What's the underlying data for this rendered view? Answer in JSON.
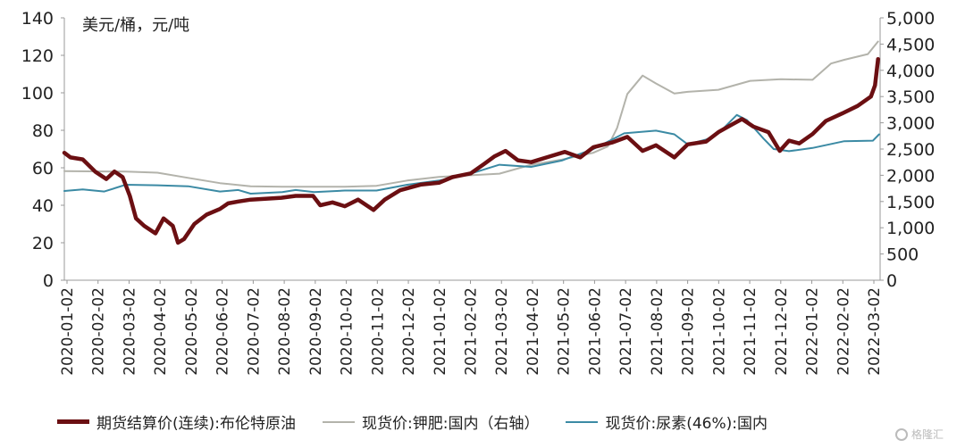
{
  "chart_data": {
    "type": "line",
    "title": "",
    "left_axis_label": "美元/桶，元/吨",
    "left_axis": {
      "ylim": [
        0,
        140
      ],
      "ticks": [
        0,
        20,
        40,
        60,
        80,
        100,
        120,
        140
      ]
    },
    "right_axis": {
      "ylim": [
        0,
        5000
      ],
      "ticks": [
        0,
        500,
        1000,
        1500,
        2000,
        2500,
        3000,
        3500,
        4000,
        4500,
        5000
      ],
      "tick_labels": [
        "0",
        "500",
        "1,000",
        "1,500",
        "2,000",
        "2,500",
        "3,000",
        "3,500",
        "4,000",
        "4,500",
        "5,000"
      ]
    },
    "x_range": [
      "2020-01-02",
      "2022-03-09"
    ],
    "x_tick_labels": [
      "2020-01-02",
      "2020-02-02",
      "2020-03-02",
      "2020-04-02",
      "2020-05-02",
      "2020-06-02",
      "2020-07-02",
      "2020-08-02",
      "2020-09-02",
      "2020-10-02",
      "2020-11-02",
      "2020-12-02",
      "2021-01-02",
      "2021-02-02",
      "2021-03-02",
      "2021-04-02",
      "2021-05-02",
      "2021-06-02",
      "2021-07-02",
      "2021-08-02",
      "2021-09-02",
      "2021-10-02",
      "2021-11-02",
      "2021-12-02",
      "2022-01-02",
      "2022-02-02",
      "2022-03-02"
    ],
    "grid": false,
    "legend_position": "bottom",
    "series": [
      {
        "name": "期货结算价(连续):布伦特原油",
        "axis": "left",
        "color": "#6b0f12",
        "style": "solid-thick",
        "points": [
          [
            "2020-01-02",
            68
          ],
          [
            "2020-01-08",
            65.5
          ],
          [
            "2020-01-20",
            64.5
          ],
          [
            "2020-02-01",
            58
          ],
          [
            "2020-02-12",
            54
          ],
          [
            "2020-02-20",
            58
          ],
          [
            "2020-02-28",
            55
          ],
          [
            "2020-03-06",
            45
          ],
          [
            "2020-03-12",
            33
          ],
          [
            "2020-03-20",
            29
          ],
          [
            "2020-03-31",
            25
          ],
          [
            "2020-04-08",
            33
          ],
          [
            "2020-04-17",
            29
          ],
          [
            "2020-04-22",
            20
          ],
          [
            "2020-04-28",
            22
          ],
          [
            "2020-05-08",
            30
          ],
          [
            "2020-05-20",
            35
          ],
          [
            "2020-06-02",
            38
          ],
          [
            "2020-06-10",
            41
          ],
          [
            "2020-06-20",
            42
          ],
          [
            "2020-07-02",
            43
          ],
          [
            "2020-08-01",
            44
          ],
          [
            "2020-08-15",
            45
          ],
          [
            "2020-09-01",
            45
          ],
          [
            "2020-09-08",
            40
          ],
          [
            "2020-09-20",
            41.5
          ],
          [
            "2020-10-02",
            39.5
          ],
          [
            "2020-10-15",
            43
          ],
          [
            "2020-10-30",
            37.5
          ],
          [
            "2020-11-10",
            43
          ],
          [
            "2020-11-25",
            48
          ],
          [
            "2020-12-15",
            51
          ],
          [
            "2021-01-02",
            52
          ],
          [
            "2021-01-15",
            55
          ],
          [
            "2021-02-02",
            57
          ],
          [
            "2021-02-15",
            62
          ],
          [
            "2021-02-25",
            66
          ],
          [
            "2021-03-08",
            69
          ],
          [
            "2021-03-20",
            64
          ],
          [
            "2021-04-02",
            63
          ],
          [
            "2021-04-20",
            66
          ],
          [
            "2021-05-05",
            68.5
          ],
          [
            "2021-05-20",
            65.5
          ],
          [
            "2021-06-02",
            71
          ],
          [
            "2021-06-20",
            73.5
          ],
          [
            "2021-07-05",
            76.5
          ],
          [
            "2021-07-20",
            69
          ],
          [
            "2021-08-02",
            72
          ],
          [
            "2021-08-20",
            65.5
          ],
          [
            "2021-09-02",
            72.5
          ],
          [
            "2021-09-20",
            74
          ],
          [
            "2021-10-02",
            79
          ],
          [
            "2021-10-15",
            83
          ],
          [
            "2021-10-25",
            86
          ],
          [
            "2021-11-05",
            82
          ],
          [
            "2021-11-20",
            79
          ],
          [
            "2021-12-01",
            69
          ],
          [
            "2021-12-10",
            74.5
          ],
          [
            "2021-12-20",
            73
          ],
          [
            "2022-01-02",
            78
          ],
          [
            "2022-01-15",
            85
          ],
          [
            "2022-01-31",
            89
          ],
          [
            "2022-02-15",
            93
          ],
          [
            "2022-02-28",
            98
          ],
          [
            "2022-03-04",
            104
          ],
          [
            "2022-03-07",
            118
          ]
        ]
      },
      {
        "name": "现货价:钾肥:国内（右轴）",
        "axis": "right",
        "color": "#b3b3ab",
        "style": "solid",
        "points": [
          [
            "2020-01-02",
            2080
          ],
          [
            "2020-03-02",
            2070
          ],
          [
            "2020-04-02",
            2050
          ],
          [
            "2020-05-02",
            1950
          ],
          [
            "2020-06-02",
            1850
          ],
          [
            "2020-07-02",
            1790
          ],
          [
            "2020-08-02",
            1780
          ],
          [
            "2020-09-02",
            1780
          ],
          [
            "2020-10-02",
            1780
          ],
          [
            "2020-11-02",
            1800
          ],
          [
            "2020-12-02",
            1900
          ],
          [
            "2021-01-02",
            1970
          ],
          [
            "2021-02-02",
            2000
          ],
          [
            "2021-03-02",
            2030
          ],
          [
            "2021-04-02",
            2200
          ],
          [
            "2021-05-02",
            2300
          ],
          [
            "2021-06-02",
            2430
          ],
          [
            "2021-06-16",
            2550
          ],
          [
            "2021-06-25",
            2900
          ],
          [
            "2021-07-05",
            3550
          ],
          [
            "2021-07-20",
            3900
          ],
          [
            "2021-08-02",
            3750
          ],
          [
            "2021-08-20",
            3560
          ],
          [
            "2021-09-02",
            3590
          ],
          [
            "2021-10-02",
            3630
          ],
          [
            "2021-11-02",
            3800
          ],
          [
            "2021-12-02",
            3830
          ],
          [
            "2022-01-02",
            3820
          ],
          [
            "2022-01-20",
            4130
          ],
          [
            "2022-02-02",
            4200
          ],
          [
            "2022-02-25",
            4310
          ],
          [
            "2022-03-07",
            4550
          ]
        ]
      },
      {
        "name": "现货价:尿素(46%):国内",
        "axis": "right",
        "color": "#3b8aa4",
        "style": "solid",
        "points": [
          [
            "2020-01-02",
            1700
          ],
          [
            "2020-01-20",
            1730
          ],
          [
            "2020-02-10",
            1690
          ],
          [
            "2020-03-02",
            1820
          ],
          [
            "2020-04-02",
            1810
          ],
          [
            "2020-05-02",
            1790
          ],
          [
            "2020-06-02",
            1690
          ],
          [
            "2020-06-20",
            1720
          ],
          [
            "2020-07-02",
            1650
          ],
          [
            "2020-08-02",
            1680
          ],
          [
            "2020-08-15",
            1720
          ],
          [
            "2020-09-02",
            1680
          ],
          [
            "2020-10-02",
            1710
          ],
          [
            "2020-11-02",
            1710
          ],
          [
            "2020-12-02",
            1820
          ],
          [
            "2021-01-02",
            1900
          ],
          [
            "2021-02-02",
            2030
          ],
          [
            "2021-03-02",
            2200
          ],
          [
            "2021-04-02",
            2160
          ],
          [
            "2021-05-02",
            2280
          ],
          [
            "2021-06-02",
            2500
          ],
          [
            "2021-07-02",
            2800
          ],
          [
            "2021-08-02",
            2850
          ],
          [
            "2021-08-20",
            2780
          ],
          [
            "2021-09-02",
            2590
          ],
          [
            "2021-09-20",
            2680
          ],
          [
            "2021-10-02",
            2800
          ],
          [
            "2021-10-20",
            3150
          ],
          [
            "2021-10-30",
            3050
          ],
          [
            "2021-11-15",
            2700
          ],
          [
            "2021-11-25",
            2500
          ],
          [
            "2021-12-10",
            2460
          ],
          [
            "2022-01-02",
            2520
          ],
          [
            "2022-02-02",
            2650
          ],
          [
            "2022-03-02",
            2660
          ],
          [
            "2022-03-08",
            2780
          ]
        ]
      }
    ]
  },
  "watermark": "格隆汇"
}
